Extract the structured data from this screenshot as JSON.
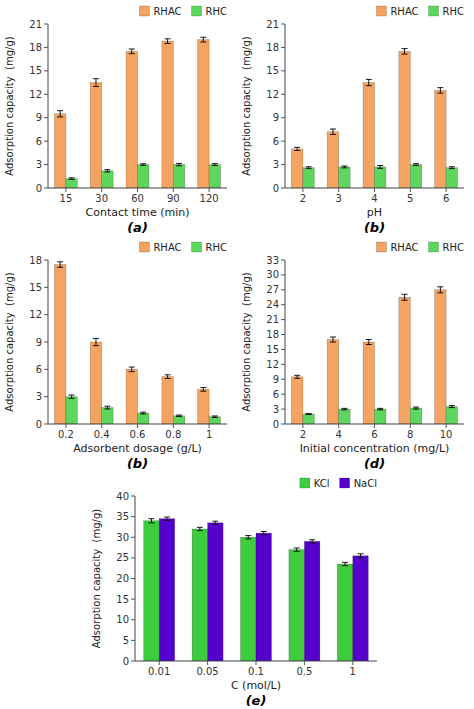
{
  "chart_data": [
    {
      "type": "bar",
      "xlabel": "Contact time (min)",
      "ylabel": "Adsorption capacity  (mg/g)",
      "subtitle": "(a)",
      "categories": [
        "15",
        "30",
        "60",
        "90",
        "120"
      ],
      "series": [
        {
          "name": "RHAC",
          "color": "#F4A460",
          "values": [
            9.5,
            13.5,
            17.5,
            18.8,
            19.0
          ],
          "errors": [
            0.4,
            0.5,
            0.3,
            0.3,
            0.3
          ]
        },
        {
          "name": "RHC",
          "color": "#5CD65C",
          "values": [
            1.2,
            2.2,
            3.0,
            3.0,
            3.0
          ],
          "errors": [
            0.1,
            0.15,
            0.1,
            0.15,
            0.12
          ]
        }
      ],
      "ylim": [
        0,
        21
      ],
      "yticks": [
        0,
        3,
        6,
        9,
        12,
        15,
        18,
        21
      ],
      "legend": "upper right"
    },
    {
      "type": "bar",
      "xlabel": "pH",
      "ylabel": "Adsorption capacity  (mg/g)",
      "subtitle": "(b)",
      "categories": [
        "2",
        "3",
        "4",
        "5",
        "6"
      ],
      "series": [
        {
          "name": "RHAC",
          "color": "#F4A460",
          "values": [
            5.0,
            7.2,
            13.5,
            17.5,
            12.5
          ],
          "errors": [
            0.2,
            0.35,
            0.4,
            0.35,
            0.35
          ]
        },
        {
          "name": "RHC",
          "color": "#5CD65C",
          "values": [
            2.6,
            2.7,
            2.7,
            3.0,
            2.6
          ],
          "errors": [
            0.12,
            0.12,
            0.18,
            0.12,
            0.12
          ]
        }
      ],
      "ylim": [
        0,
        21
      ],
      "yticks": [
        0,
        3,
        6,
        9,
        12,
        15,
        18,
        21
      ],
      "legend": "upper right"
    },
    {
      "type": "bar",
      "xlabel": "Adsorbent dosage (g/L)",
      "ylabel": "Adsorption capacity  (mg/g)",
      "subtitle": "(b)",
      "categories": [
        "0.2",
        "0.4",
        "0.6",
        "0.8",
        "1"
      ],
      "series": [
        {
          "name": "RHAC",
          "color": "#F4A460",
          "values": [
            17.5,
            9.0,
            6.0,
            5.2,
            3.8
          ],
          "errors": [
            0.3,
            0.4,
            0.25,
            0.2,
            0.2
          ]
        },
        {
          "name": "RHC",
          "color": "#5CD65C",
          "values": [
            3.0,
            1.8,
            1.2,
            0.9,
            0.8
          ],
          "errors": [
            0.18,
            0.15,
            0.1,
            0.08,
            0.08
          ]
        }
      ],
      "ylim": [
        0,
        18
      ],
      "yticks": [
        0,
        3,
        6,
        9,
        12,
        15,
        18
      ],
      "legend": "upper right"
    },
    {
      "type": "bar",
      "xlabel": "Initial concentration (mg/L)",
      "ylabel": "Adsorption capacity  (mg/g)",
      "subtitle": "(d)",
      "categories": [
        "2",
        "4",
        "6",
        "8",
        "10"
      ],
      "series": [
        {
          "name": "RHAC",
          "color": "#F4A460",
          "values": [
            9.5,
            17.0,
            16.5,
            25.5,
            27.0
          ],
          "errors": [
            0.3,
            0.5,
            0.5,
            0.6,
            0.6
          ]
        },
        {
          "name": "RHC",
          "color": "#5CD65C",
          "values": [
            2.0,
            3.0,
            3.0,
            3.2,
            3.5
          ],
          "errors": [
            0.1,
            0.15,
            0.15,
            0.2,
            0.2
          ]
        }
      ],
      "ylim": [
        0,
        33
      ],
      "yticks": [
        0,
        3,
        6,
        9,
        12,
        15,
        18,
        21,
        24,
        27,
        30,
        33
      ],
      "legend": "upper right"
    },
    {
      "type": "bar",
      "xlabel": "C (mol/L)",
      "ylabel": "Adsorption capacity  (mg/g)",
      "subtitle": "(e)",
      "categories": [
        "0.01",
        "0.05",
        "0.1",
        "0.5",
        "1"
      ],
      "series": [
        {
          "name": "KCl",
          "color": "#3DCC3D",
          "values": [
            34.0,
            32.0,
            30.0,
            27.0,
            23.5
          ],
          "errors": [
            0.5,
            0.4,
            0.4,
            0.4,
            0.4
          ]
        },
        {
          "name": "NaCl",
          "color": "#5500CC",
          "values": [
            34.5,
            33.5,
            31.0,
            29.0,
            25.5
          ],
          "errors": [
            0.4,
            0.4,
            0.4,
            0.4,
            0.5
          ]
        }
      ],
      "ylim": [
        0,
        40
      ],
      "yticks": [
        0,
        5,
        10,
        15,
        20,
        25,
        30,
        35,
        40
      ],
      "legend": "upper right"
    }
  ]
}
